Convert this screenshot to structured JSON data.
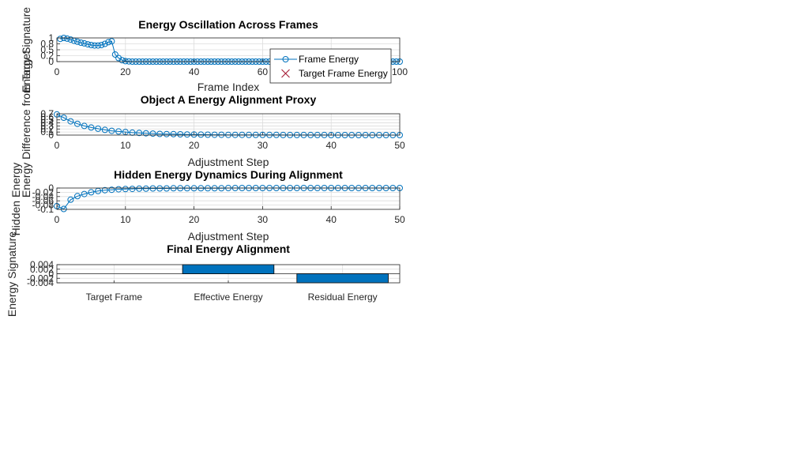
{
  "colors": {
    "series": "#0072BD",
    "target_marker": "#A2142F",
    "bar": "#0072BD",
    "grid": "#dcdcdc",
    "axis": "#262626"
  },
  "chart_data": [
    {
      "type": "line",
      "title": "Energy Oscillation Across Frames",
      "xlabel": "Frame Index",
      "ylabel": "Energy Signature",
      "xlim": [
        0,
        100
      ],
      "ylim": [
        0,
        1
      ],
      "xticks": [
        "0",
        "20",
        "40",
        "60",
        "80",
        "100"
      ],
      "yticks": [
        "0",
        "0.2",
        "0.5",
        "0.8",
        "1"
      ],
      "grid": true,
      "marker": "circle",
      "legend": {
        "position": "inside-right",
        "entries": [
          "Frame Energy",
          "Target Frame Energy"
        ]
      },
      "series": [
        {
          "name": "Frame Energy",
          "x": [
            1,
            2,
            3,
            4,
            5,
            6,
            7,
            8,
            9,
            10,
            11,
            12,
            13,
            14,
            15,
            16,
            17,
            18,
            19,
            20,
            21,
            22,
            23,
            24,
            25,
            26,
            27,
            28,
            29,
            30,
            31,
            32,
            33,
            34,
            35,
            36,
            37,
            38,
            39,
            40,
            41,
            42,
            43,
            44,
            45,
            46,
            47,
            48,
            49,
            50,
            51,
            52,
            53,
            54,
            55,
            56,
            57,
            58,
            59,
            60,
            61,
            62,
            63,
            64,
            65,
            66,
            67,
            68,
            69,
            70,
            71,
            72,
            73,
            74,
            75,
            76,
            77,
            78,
            79,
            80,
            81,
            82,
            83,
            84,
            85,
            86,
            87,
            88,
            89,
            90,
            91,
            92,
            93,
            94,
            95,
            96,
            97,
            98,
            99,
            100
          ],
          "values": [
            0.96,
            1.0,
            0.97,
            0.93,
            0.88,
            0.84,
            0.8,
            0.77,
            0.73,
            0.7,
            0.68,
            0.68,
            0.7,
            0.75,
            0.82,
            0.86,
            0.3,
            0.15,
            0.06,
            0.02,
            0.01,
            0,
            0,
            0,
            0,
            0,
            0,
            0,
            0,
            0,
            0,
            0,
            0,
            0,
            0,
            0,
            0,
            0,
            0,
            0,
            0,
            0,
            0,
            0,
            0,
            0,
            0,
            0,
            0,
            0,
            0,
            0,
            0,
            0,
            0,
            0,
            0,
            0,
            0,
            0,
            0,
            0,
            0,
            0,
            0,
            0,
            0,
            0,
            0,
            0,
            0,
            0,
            0,
            0,
            0,
            0,
            0,
            0,
            0,
            0,
            0,
            0,
            0,
            0,
            0,
            0,
            0,
            0,
            0,
            0,
            0,
            0,
            0,
            0,
            0,
            0,
            0,
            0,
            0,
            0
          ]
        },
        {
          "name": "Target Frame Energy",
          "x": [],
          "values": []
        }
      ]
    },
    {
      "type": "line",
      "title": "Object A Energy Alignment Proxy",
      "xlabel": "Adjustment Step",
      "ylabel": "Energy Difference from Target",
      "xlim": [
        0,
        50
      ],
      "ylim": [
        0,
        0.7
      ],
      "xticks": [
        "0",
        "10",
        "20",
        "30",
        "40",
        "50"
      ],
      "yticks": [
        "0",
        "0.1",
        "0.2",
        "0.3",
        "0.4",
        "0.5",
        "0.6",
        "0.7"
      ],
      "grid": true,
      "marker": "circle",
      "series": [
        {
          "x": [
            0,
            1,
            2,
            3,
            4,
            5,
            6,
            7,
            8,
            9,
            10,
            11,
            12,
            13,
            14,
            15,
            16,
            17,
            18,
            19,
            20,
            21,
            22,
            23,
            24,
            25,
            26,
            27,
            28,
            29,
            30,
            31,
            32,
            33,
            34,
            35,
            36,
            37,
            38,
            39,
            40,
            41,
            42,
            43,
            44,
            45,
            46,
            47,
            48,
            49,
            50
          ],
          "values": [
            0.68,
            0.57,
            0.45,
            0.37,
            0.3,
            0.25,
            0.21,
            0.17,
            0.14,
            0.12,
            0.1,
            0.08,
            0.07,
            0.06,
            0.05,
            0.04,
            0.035,
            0.03,
            0.025,
            0.02,
            0.017,
            0.015,
            0.013,
            0.011,
            0.01,
            0.009,
            0.008,
            0.007,
            0.006,
            0.005,
            0.005,
            0.004,
            0.004,
            0.003,
            0.003,
            0.003,
            0.002,
            0.002,
            0.002,
            0.002,
            0.001,
            0.001,
            0.001,
            0.001,
            0.001,
            0.001,
            0.001,
            0.001,
            0.001,
            0.001,
            0.001
          ]
        }
      ]
    },
    {
      "type": "line",
      "title": "Hidden Energy Dynamics During Alignment",
      "xlabel": "Adjustment Step",
      "ylabel": "Hidden Energy",
      "xlim": [
        0,
        50
      ],
      "ylim": [
        -0.1,
        0
      ],
      "xticks": [
        "0",
        "10",
        "20",
        "30",
        "40",
        "50"
      ],
      "yticks": [
        "-0.1",
        "-0.08",
        "-0.06",
        "-0.04",
        "-0.02",
        "0"
      ],
      "grid": true,
      "marker": "circle",
      "series": [
        {
          "x": [
            0,
            1,
            2,
            3,
            4,
            5,
            6,
            7,
            8,
            9,
            10,
            11,
            12,
            13,
            14,
            15,
            16,
            17,
            18,
            19,
            20,
            21,
            22,
            23,
            24,
            25,
            26,
            27,
            28,
            29,
            30,
            31,
            32,
            33,
            34,
            35,
            36,
            37,
            38,
            39,
            40,
            41,
            42,
            43,
            44,
            45,
            46,
            47,
            48,
            49,
            50
          ],
          "values": [
            -0.085,
            -0.098,
            -0.055,
            -0.038,
            -0.028,
            -0.02,
            -0.014,
            -0.01,
            -0.008,
            -0.006,
            -0.005,
            -0.004,
            -0.003,
            -0.003,
            -0.002,
            -0.002,
            -0.002,
            -0.001,
            -0.001,
            -0.001,
            -0.001,
            -0.001,
            -0.001,
            -0.001,
            -0.001,
            0,
            0,
            0,
            0,
            0,
            0,
            0,
            0,
            0,
            0,
            0,
            0,
            0,
            0,
            0,
            0,
            0,
            0,
            0,
            0,
            0,
            0,
            0,
            0,
            0,
            0
          ]
        }
      ]
    },
    {
      "type": "bar",
      "title": "Final Energy Alignment",
      "xlabel": "",
      "ylabel": "Energy Signature",
      "categories": [
        "Target Frame",
        "Effective Energy",
        "Residual Energy"
      ],
      "values": [
        0,
        0.004,
        -0.004
      ],
      "ylim": [
        -0.004,
        0.004
      ],
      "yticks": [
        "-0.004",
        "-0.002",
        "0",
        "0.002",
        "0.004"
      ],
      "grid": true
    }
  ]
}
